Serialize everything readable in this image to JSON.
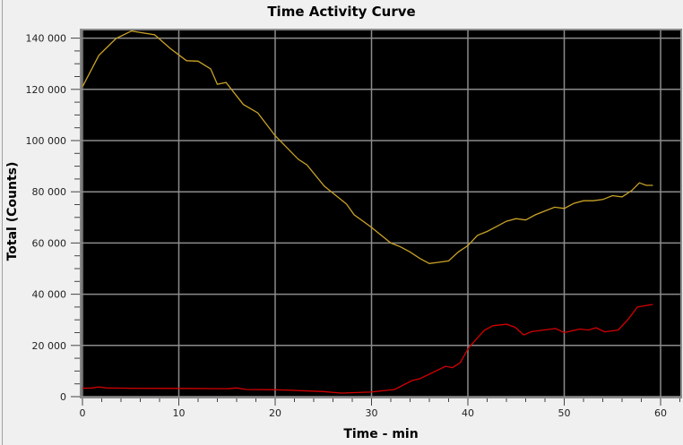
{
  "chart_data": {
    "type": "line",
    "title": "Time Activity Curve",
    "xlabel": "Time - min",
    "ylabel": "Total (Counts)",
    "xlim": [
      0,
      62
    ],
    "ylim": [
      0,
      143500
    ],
    "xticks": [
      0,
      10,
      20,
      30,
      40,
      50,
      60
    ],
    "yticks": [
      0,
      20000,
      40000,
      60000,
      80000,
      100000,
      120000,
      140000
    ],
    "ytick_labels": [
      "0",
      "20 000",
      "40 000",
      "60 000",
      "80 000",
      "100 000",
      "120 000",
      "140 000"
    ],
    "xtick_labels": [
      "0",
      "10",
      "20",
      "30",
      "40",
      "50",
      "60"
    ],
    "grid": true,
    "background": "#000000",
    "series": [
      {
        "name": "yellow curve",
        "color": "#c9a227",
        "x": [
          0,
          1.7,
          3.5,
          5.1,
          5.5,
          7.5,
          9.1,
          10.8,
          12,
          13.3,
          14,
          14.9,
          16.7,
          18.2,
          20,
          22.4,
          23.3,
          25.1,
          27.4,
          28.2,
          29.9,
          31,
          32,
          33,
          34,
          35,
          36,
          37,
          38,
          39,
          40,
          41,
          42,
          43,
          44,
          45,
          46,
          47,
          48,
          49,
          50,
          51,
          52,
          53,
          54,
          55,
          56,
          57,
          57.8,
          58.5,
          59.2
        ],
        "y": [
          121000,
          133300,
          139900,
          142800,
          142500,
          141300,
          136000,
          131200,
          131000,
          128000,
          122000,
          122700,
          114100,
          110800,
          101900,
          92700,
          90500,
          82200,
          75200,
          71000,
          66400,
          63000,
          60000,
          58500,
          56500,
          54000,
          52000,
          52500,
          53000,
          56500,
          59000,
          63000,
          64500,
          66500,
          68500,
          69500,
          69000,
          71000,
          72500,
          74000,
          73500,
          75500,
          76500,
          76500,
          77000,
          78500,
          78000,
          80500,
          83500,
          82500,
          82500
        ]
      },
      {
        "name": "red curve",
        "color": "#d40000",
        "x": [
          0,
          1,
          1.7,
          2.5,
          5,
          10,
          15,
          16,
          17,
          20,
          21,
          25,
          26.8,
          29.9,
          32.4,
          34.2,
          35,
          37.7,
          38.4,
          39.2,
          40.1,
          41.7,
          42.6,
          44,
          44.9,
          45.8,
          46.6,
          49.1,
          50,
          51.6,
          52.5,
          53.3,
          54.2,
          55.6,
          56.6,
          57.6,
          59.2
        ],
        "y": [
          3300,
          3400,
          3800,
          3400,
          3300,
          3200,
          3100,
          3400,
          2800,
          2700,
          2600,
          2000,
          1400,
          1800,
          2800,
          6300,
          7000,
          11900,
          11300,
          13300,
          19200,
          25900,
          27700,
          28300,
          27100,
          24100,
          25400,
          26600,
          25000,
          26400,
          26000,
          26900,
          25300,
          26000,
          30100,
          35000,
          36000
        ]
      }
    ]
  }
}
